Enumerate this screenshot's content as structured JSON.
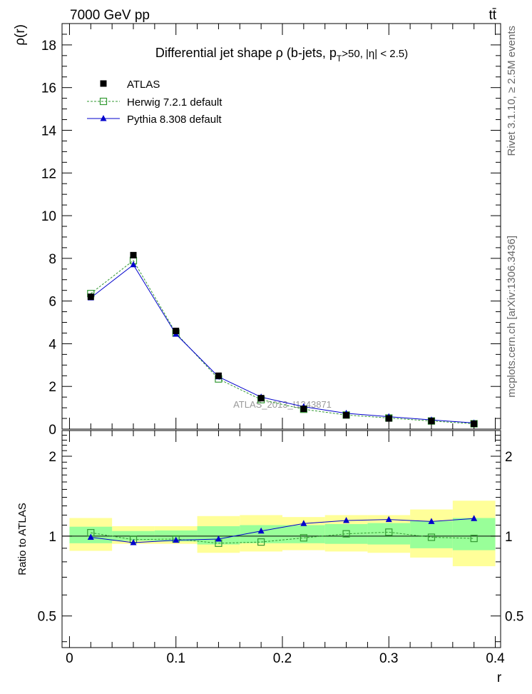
{
  "header": {
    "energy_label": "7000 GeV pp",
    "process_label": "tt̄"
  },
  "side_labels": {
    "rivet": "Rivet 3.1.10, ≥ 2.5M events",
    "mcplots": "mcplots.cern.ch [arXiv:1306.3436]"
  },
  "chart_data": [
    {
      "type": "scatter",
      "title": "Differential jet shape  ρ (b-jets, p",
      "title_sub": "T",
      "title_tail": ">50, |η| < 2.5)",
      "ylabel": "ρ(r)",
      "watermark": "ATLAS_2013_I1243871",
      "ylim": [
        0,
        19
      ],
      "yticks": [
        "0",
        "2",
        "4",
        "6",
        "8",
        "10",
        "12",
        "14",
        "16",
        "18"
      ],
      "x": [
        0.02,
        0.06,
        0.1,
        0.14,
        0.18,
        0.22,
        0.26,
        0.3,
        0.34,
        0.38
      ],
      "series": [
        {
          "name": "ATLAS",
          "marker": "filled-square",
          "color": "#000000",
          "values": [
            6.2,
            8.15,
            4.6,
            2.5,
            1.45,
            0.95,
            0.65,
            0.5,
            0.38,
            0.25
          ]
        },
        {
          "name": "Herwig 7.2.1 default",
          "marker": "open-square",
          "color": "#339933",
          "line": "dashed",
          "values": [
            6.35,
            7.9,
            4.5,
            2.35,
            1.38,
            0.93,
            0.66,
            0.52,
            0.38,
            0.25
          ]
        },
        {
          "name": "Pythia 8.308 default",
          "marker": "triangle",
          "color": "#0000cc",
          "line": "solid",
          "values": [
            6.15,
            7.7,
            4.45,
            2.45,
            1.5,
            1.05,
            0.74,
            0.58,
            0.43,
            0.29
          ]
        }
      ]
    },
    {
      "type": "scatter",
      "ylabel": "Ratio to ATLAS",
      "xlabel": "r",
      "xlim": [
        -0.007,
        0.405
      ],
      "xticks": [
        "0",
        "0.1",
        "0.2",
        "0.3",
        "0.4"
      ],
      "ylim": [
        0.38,
        2.5
      ],
      "yticks": [
        "0.5",
        "1",
        "2"
      ],
      "bands": {
        "x_edges": [
          0.0,
          0.04,
          0.08,
          0.12,
          0.16,
          0.2,
          0.24,
          0.28,
          0.32,
          0.36,
          0.4
        ],
        "yellow_lo": [
          0.88,
          0.935,
          0.935,
          0.865,
          0.875,
          0.885,
          0.875,
          0.865,
          0.83,
          0.77
        ],
        "yellow_hi": [
          1.17,
          1.09,
          1.09,
          1.19,
          1.2,
          1.18,
          1.2,
          1.2,
          1.26,
          1.36
        ],
        "green_lo": [
          0.94,
          0.96,
          0.955,
          0.93,
          0.94,
          0.94,
          0.935,
          0.93,
          0.9,
          0.885
        ],
        "green_hi": [
          1.085,
          1.045,
          1.05,
          1.09,
          1.1,
          1.1,
          1.11,
          1.12,
          1.14,
          1.17
        ],
        "yellow_color": "#ffff99",
        "green_color": "#99ff99"
      },
      "series": [
        {
          "name": "Herwig 7.2.1 default",
          "marker": "open-square",
          "color": "#339933",
          "line": "dashed",
          "values": [
            1.03,
            0.97,
            0.975,
            0.94,
            0.95,
            0.985,
            1.02,
            1.035,
            0.99,
            0.98
          ]
        },
        {
          "name": "Pythia 8.308 default",
          "marker": "triangle",
          "color": "#0000cc",
          "line": "solid",
          "values": [
            0.99,
            0.945,
            0.965,
            0.975,
            1.045,
            1.115,
            1.145,
            1.155,
            1.135,
            1.165
          ]
        }
      ]
    }
  ]
}
